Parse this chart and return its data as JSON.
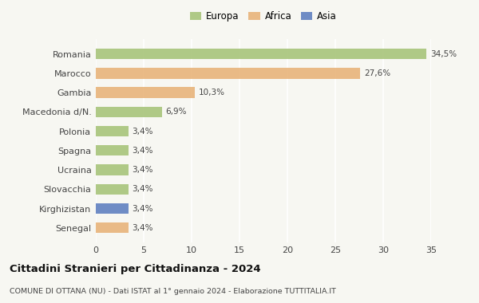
{
  "countries": [
    "Romania",
    "Marocco",
    "Gambia",
    "Macedonia d/N.",
    "Polonia",
    "Spagna",
    "Ucraina",
    "Slovacchia",
    "Kirghizistan",
    "Senegal"
  ],
  "values": [
    34.5,
    27.6,
    10.3,
    6.9,
    3.4,
    3.4,
    3.4,
    3.4,
    3.4,
    3.4
  ],
  "labels": [
    "34,5%",
    "27,6%",
    "10,3%",
    "6,9%",
    "3,4%",
    "3,4%",
    "3,4%",
    "3,4%",
    "3,4%",
    "3,4%"
  ],
  "continents": [
    "Europa",
    "Africa",
    "Africa",
    "Europa",
    "Europa",
    "Europa",
    "Europa",
    "Europa",
    "Asia",
    "Africa"
  ],
  "bar_colors": [
    "#a8c47a",
    "#e8b47a",
    "#e8b47a",
    "#a8c47a",
    "#a8c47a",
    "#a8c47a",
    "#a8c47a",
    "#a8c47a",
    "#6080c0",
    "#e8b47a"
  ],
  "legend_colors": {
    "Europa": "#a8c47a",
    "Africa": "#e8b47a",
    "Asia": "#6080c0"
  },
  "title": "Cittadini Stranieri per Cittadinanza - 2024",
  "subtitle": "COMUNE DI OTTANA (NU) - Dati ISTAT al 1° gennaio 2024 - Elaborazione TUTTITALIA.IT",
  "xlim": [
    0,
    35
  ],
  "xticks": [
    0,
    5,
    10,
    15,
    20,
    25,
    30,
    35
  ],
  "background_color": "#f7f7f2",
  "grid_color": "#ffffff",
  "bar_height": 0.55,
  "bar_alpha": 0.9
}
